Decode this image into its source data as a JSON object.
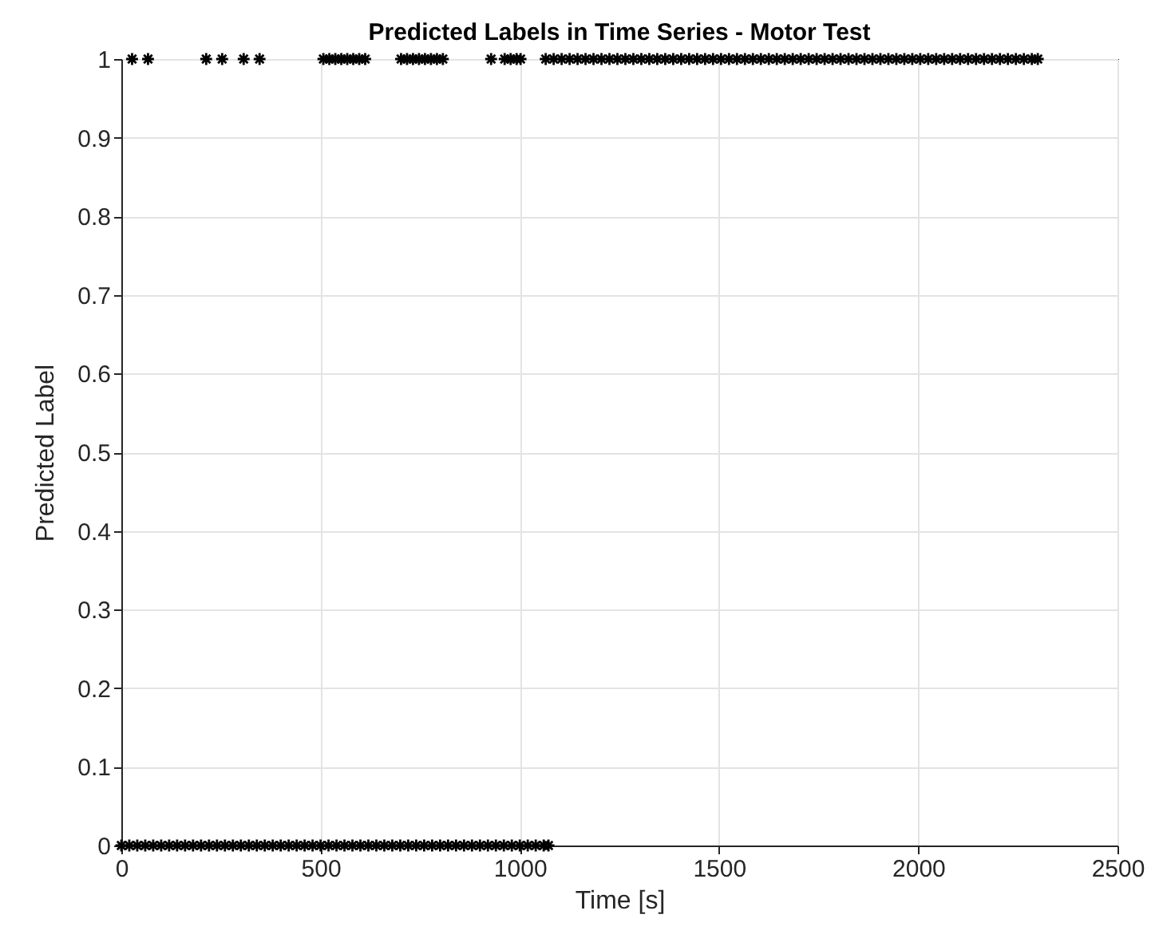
{
  "chart_data": {
    "type": "scatter",
    "title": "Predicted Labels in Time Series - Motor Test",
    "xlabel": "Time [s]",
    "ylabel": "Predicted Label",
    "xlim": [
      0,
      2500
    ],
    "xticks": [
      0,
      500,
      1000,
      1500,
      2000,
      2500
    ],
    "ylim": [
      0,
      1
    ],
    "yticks": [
      0,
      0.1,
      0.2,
      0.3,
      0.4,
      0.5,
      0.6,
      0.7,
      0.8,
      0.9,
      1
    ],
    "grid": true,
    "marker": "cross",
    "series": [
      {
        "color": "#000000",
        "x": [
          0,
          20,
          40,
          60,
          80,
          100,
          120,
          140,
          160,
          180,
          200,
          220,
          240,
          260,
          280,
          300,
          320,
          340,
          360,
          380,
          400,
          420,
          440,
          460,
          480,
          500,
          520,
          540,
          560,
          580,
          600,
          620,
          640,
          660,
          680,
          700,
          720,
          740,
          760,
          780,
          800,
          820,
          840,
          860,
          880,
          900,
          920,
          940,
          960,
          980,
          1000,
          1020,
          1040,
          1060,
          1072
        ],
        "values": [
          0,
          0,
          0,
          0,
          0,
          0,
          0,
          0,
          0,
          0,
          0,
          0,
          0,
          0,
          0,
          0,
          0,
          0,
          0,
          0,
          0,
          0,
          0,
          0,
          0,
          0,
          0,
          0,
          0,
          0,
          0,
          0,
          0,
          0,
          0,
          0,
          0,
          0,
          0,
          0,
          0,
          0,
          0,
          0,
          0,
          0,
          0,
          0,
          0,
          0,
          0,
          0,
          0,
          0,
          0
        ]
      },
      {
        "color": "#000000",
        "x": [
          27,
          67,
          213,
          253,
          307,
          347,
          507,
          522,
          537,
          552,
          567,
          582,
          597,
          612,
          702,
          717,
          732,
          747,
          762,
          777,
          792,
          807,
          928,
          962,
          977,
          992,
          1002,
          1065,
          1085,
          1105,
          1125,
          1145,
          1165,
          1185,
          1205,
          1225,
          1245,
          1265,
          1285,
          1305,
          1325,
          1345,
          1365,
          1385,
          1405,
          1425,
          1445,
          1465,
          1485,
          1505,
          1525,
          1545,
          1565,
          1585,
          1605,
          1625,
          1645,
          1665,
          1685,
          1705,
          1725,
          1745,
          1765,
          1785,
          1805,
          1825,
          1845,
          1865,
          1885,
          1905,
          1925,
          1945,
          1965,
          1985,
          2005,
          2025,
          2045,
          2065,
          2085,
          2105,
          2125,
          2145,
          2165,
          2185,
          2205,
          2225,
          2245,
          2265,
          2285,
          2300
        ],
        "values": [
          1,
          1,
          1,
          1,
          1,
          1,
          1,
          1,
          1,
          1,
          1,
          1,
          1,
          1,
          1,
          1,
          1,
          1,
          1,
          1,
          1,
          1,
          1,
          1,
          1,
          1,
          1,
          1,
          1,
          1,
          1,
          1,
          1,
          1,
          1,
          1,
          1,
          1,
          1,
          1,
          1,
          1,
          1,
          1,
          1,
          1,
          1,
          1,
          1,
          1,
          1,
          1,
          1,
          1,
          1,
          1,
          1,
          1,
          1,
          1,
          1,
          1,
          1,
          1,
          1,
          1,
          1,
          1,
          1,
          1,
          1,
          1,
          1,
          1,
          1,
          1,
          1,
          1,
          1,
          1,
          1,
          1,
          1,
          1,
          1,
          1,
          1,
          1,
          1,
          1
        ]
      }
    ]
  }
}
